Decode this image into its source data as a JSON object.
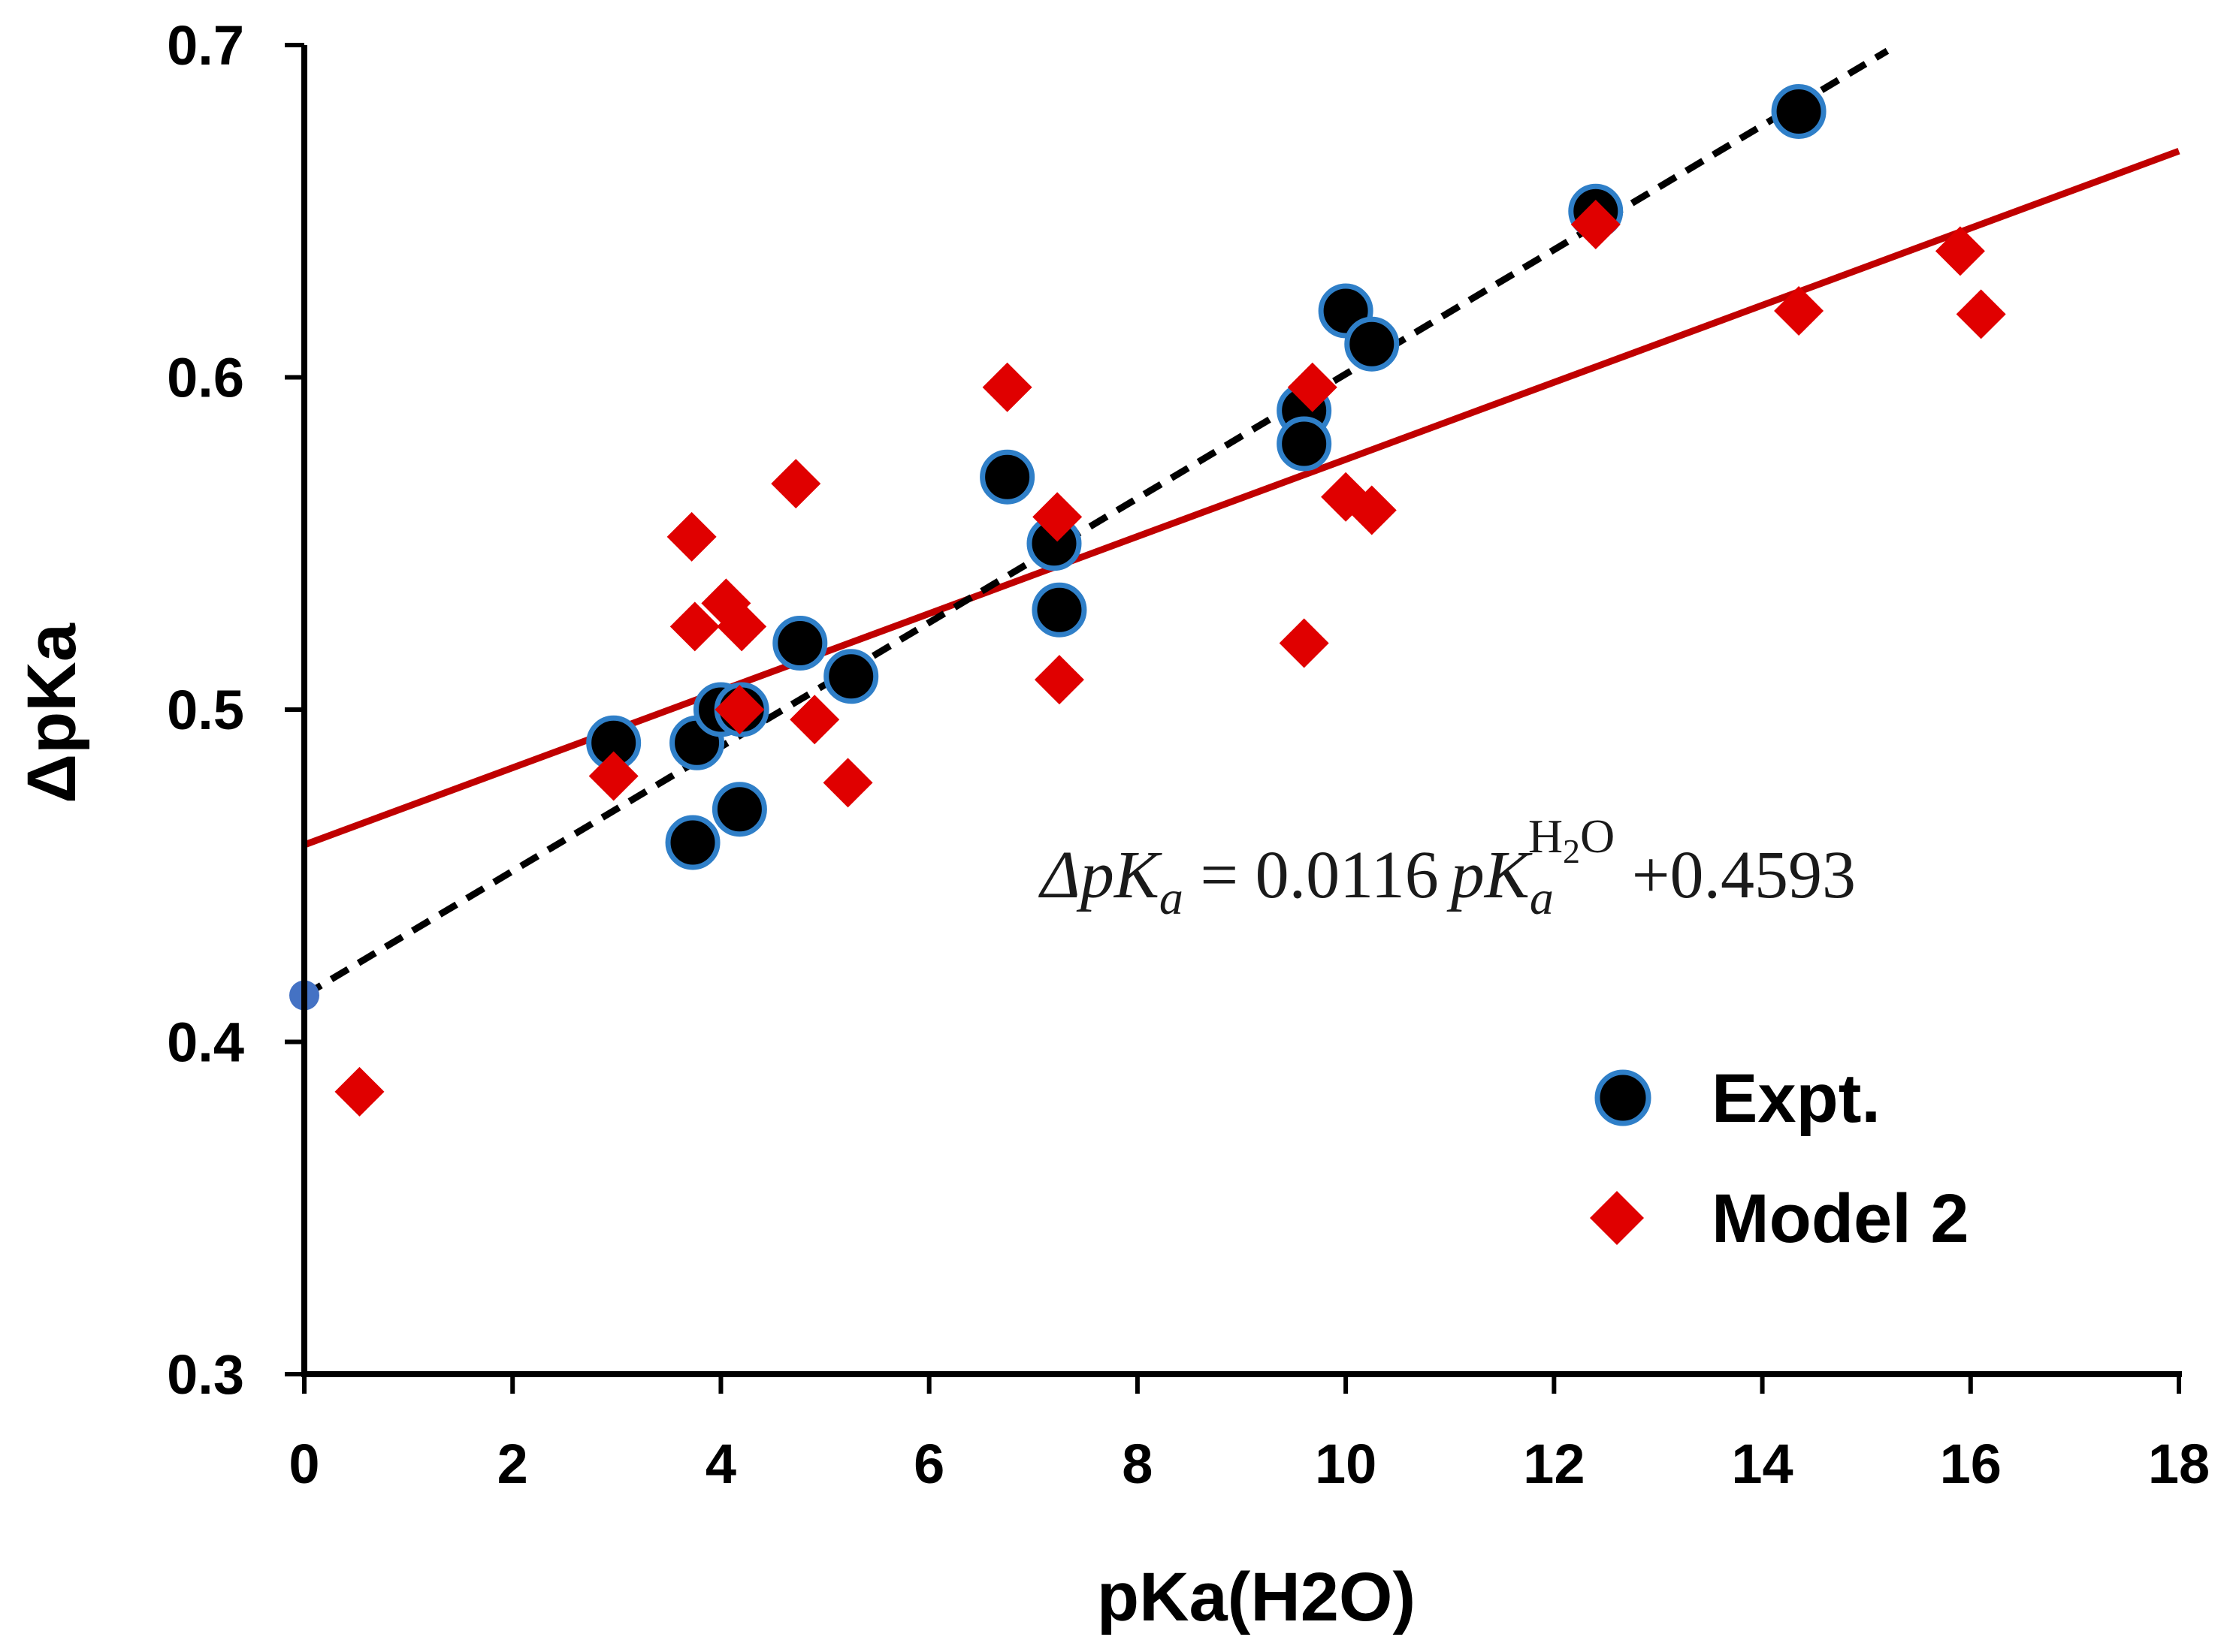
{
  "chart_data": {
    "type": "scatter",
    "title": "",
    "xlabel": "pKa(H2O)",
    "ylabel": "ΔpKa",
    "xlim": [
      0,
      18
    ],
    "ylim": [
      0.3,
      0.7
    ],
    "xticks": [
      0,
      2,
      4,
      6,
      8,
      10,
      12,
      14,
      16,
      18
    ],
    "yticks": [
      0.3,
      0.4,
      0.5,
      0.6,
      0.7
    ],
    "xtick_labels": [
      "0",
      "2",
      "4",
      "6",
      "8",
      "10",
      "12",
      "14",
      "16",
      "18"
    ],
    "ytick_labels": [
      "0.3",
      "0.4",
      "0.5",
      "0.6",
      "0.7"
    ],
    "grid": false,
    "legend_position": "bottom-right",
    "colors": {
      "expt_fill": "#000000",
      "expt_edge": "#2f7fc8",
      "model_fill": "#e00000",
      "model_line": "#c00000",
      "dashed_line": "#000000",
      "intercept_point": "#4472c4"
    },
    "series": [
      {
        "name": "Expt.",
        "marker": "circle",
        "points": [
          [
            2.97,
            0.49
          ],
          [
            3.73,
            0.46
          ],
          [
            3.77,
            0.49
          ],
          [
            4.0,
            0.5
          ],
          [
            4.2,
            0.5
          ],
          [
            4.18,
            0.47
          ],
          [
            4.76,
            0.52
          ],
          [
            5.25,
            0.51
          ],
          [
            6.75,
            0.57
          ],
          [
            7.2,
            0.55
          ],
          [
            7.25,
            0.53
          ],
          [
            9.6,
            0.59
          ],
          [
            9.6,
            0.58
          ],
          [
            10.0,
            0.62
          ],
          [
            10.25,
            0.61
          ],
          [
            12.4,
            0.65
          ],
          [
            14.35,
            0.68
          ]
        ]
      },
      {
        "name": "Model 2",
        "marker": "diamond",
        "points": [
          [
            0.53,
            0.385
          ],
          [
            2.97,
            0.48
          ],
          [
            3.72,
            0.552
          ],
          [
            3.75,
            0.525
          ],
          [
            4.05,
            0.532
          ],
          [
            4.2,
            0.525
          ],
          [
            4.18,
            0.5
          ],
          [
            4.72,
            0.568
          ],
          [
            4.9,
            0.497
          ],
          [
            5.22,
            0.478
          ],
          [
            6.75,
            0.597
          ],
          [
            7.23,
            0.558
          ],
          [
            7.25,
            0.509
          ],
          [
            9.6,
            0.52
          ],
          [
            9.68,
            0.597
          ],
          [
            10.0,
            0.564
          ],
          [
            10.25,
            0.56
          ],
          [
            12.4,
            0.646
          ],
          [
            14.35,
            0.62
          ],
          [
            15.9,
            0.638
          ],
          [
            16.1,
            0.619
          ]
        ]
      }
    ],
    "fit_lines": [
      {
        "name": "Model 2 fit",
        "style": "solid",
        "slope": 0.0116,
        "intercept": 0.4593,
        "x_range": [
          0,
          18
        ]
      },
      {
        "name": "Expt. fit",
        "style": "dashed",
        "slope": 0.0187,
        "intercept": 0.414,
        "x_range": [
          0,
          15.2
        ]
      }
    ],
    "intercept_point": {
      "x": 0,
      "y": 0.414
    },
    "annotation": {
      "lhs": "ΔpK",
      "lhs_sub": "a",
      "equals": " = 0.0116",
      "pk": "pK",
      "pk_sub": "a",
      "sup_main": "H",
      "sup_sub": "2",
      "sup_end": "O",
      "rest": " +0.4593"
    }
  }
}
